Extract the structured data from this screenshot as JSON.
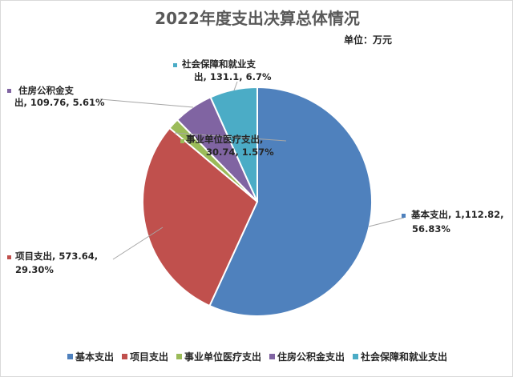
{
  "chart_data": {
    "type": "pie",
    "title": "2022年度支出决算总体情况",
    "unit_label": "单位：万元",
    "legend_position": "bottom",
    "slices": [
      {
        "name": "基本支出",
        "value": 1112.82,
        "value_label": "1,112.82",
        "percent_label": "56.83%",
        "color": "#4F81BD"
      },
      {
        "name": "项目支出",
        "value": 573.64,
        "value_label": "573.64",
        "percent_label": "29.30%",
        "color": "#C0504D"
      },
      {
        "name": "事业单位医疗支出",
        "value": 30.74,
        "value_label": "30.74",
        "percent_label": "1.57%",
        "color": "#9BBB59"
      },
      {
        "name": "住房公积金支出",
        "value": 109.76,
        "value_label": "109.76",
        "percent_label": "5.61%",
        "color": "#8064A2"
      },
      {
        "name": "社会保障和就业支出",
        "value": 131.1,
        "value_label": "131.1",
        "percent_label": "6.7%",
        "color": "#4BACC6"
      }
    ]
  }
}
